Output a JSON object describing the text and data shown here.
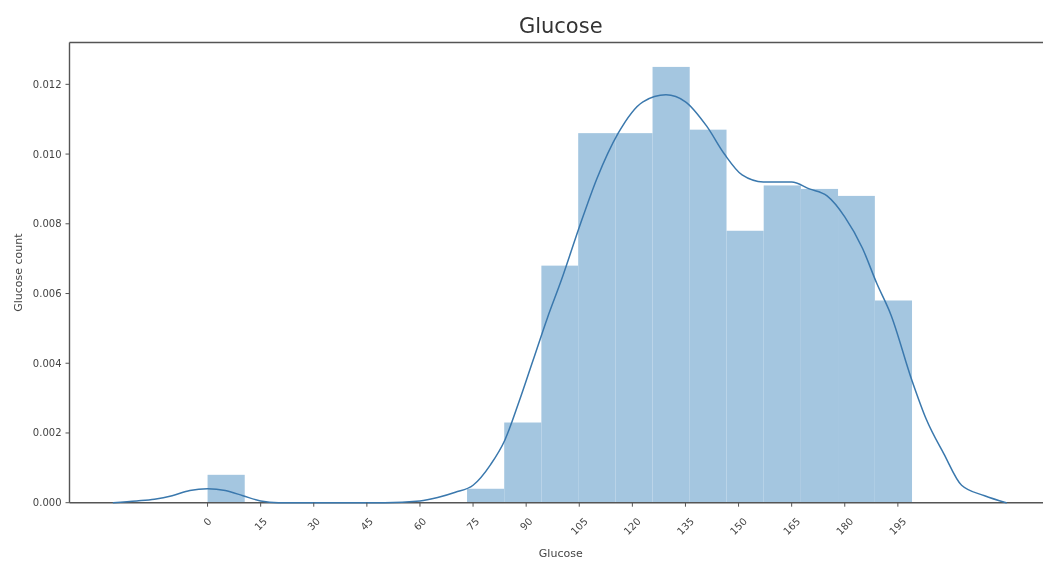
{
  "chart_data": {
    "type": "histogram",
    "title": "Glucose",
    "xlabel": "Glucose",
    "ylabel": "Glucose count",
    "bins": [
      0,
      10.5,
      20.9,
      31.4,
      41.9,
      52.4,
      62.8,
      73.3,
      83.8,
      94.3,
      104.7,
      115.2,
      125.7,
      136.2,
      146.6,
      157.1,
      167.6,
      178.1,
      188.5,
      199
    ],
    "series": [
      {
        "color": "#a4c6e0",
        "values": [
          0.0008,
          0,
          0,
          0,
          0,
          0,
          0,
          0.0004,
          0.0023,
          0.0068,
          0.0106,
          0.0106,
          0.0125,
          0.0107,
          0.0078,
          0.0091,
          0.009,
          0.0088,
          0.0058
        ]
      },
      {
        "type": "line",
        "color": "#3a78ad",
        "x": [
          -26.6,
          -20,
          -15,
          -10,
          -5,
          0,
          5,
          10,
          15,
          20,
          30,
          40,
          50,
          60,
          65,
          70,
          75,
          80,
          84,
          88,
          92,
          96,
          100,
          105,
          110,
          116,
          123,
          129.5,
          135,
          141,
          146,
          151,
          157,
          165,
          170,
          175,
          180,
          185,
          189,
          193,
          199,
          203,
          208,
          213,
          219.5,
          225.6
        ],
        "values": [
          0,
          5e-05,
          0.0001,
          0.0002,
          0.00035,
          0.0004,
          0.00035,
          0.0002,
          5e-05,
          0,
          0,
          0,
          0,
          5e-05,
          0.00015,
          0.0003,
          0.0005,
          0.0011,
          0.0018,
          0.0029,
          0.0041,
          0.0053,
          0.0064,
          0.0079,
          0.0093,
          0.0106,
          0.0115,
          0.0117,
          0.0115,
          0.0108,
          0.01,
          0.0094,
          0.0092,
          0.0092,
          0.009,
          0.0088,
          0.0082,
          0.0073,
          0.0063,
          0.0054,
          0.0035,
          0.0024,
          0.0014,
          0.0005,
          0.0002,
          0
        ]
      }
    ],
    "xlim": [
      -39,
      236
    ],
    "ylim": [
      0,
      0.0132
    ],
    "xticks": [
      0,
      15,
      30,
      45,
      60,
      75,
      90,
      105,
      120,
      135,
      150,
      165,
      180,
      195
    ],
    "yticks": [
      {
        "value": 0,
        "label": "0.000"
      },
      0.002,
      0.004,
      0.006,
      0.008,
      {
        "value": 0.01,
        "label": "0.010"
      },
      0.012
    ]
  }
}
